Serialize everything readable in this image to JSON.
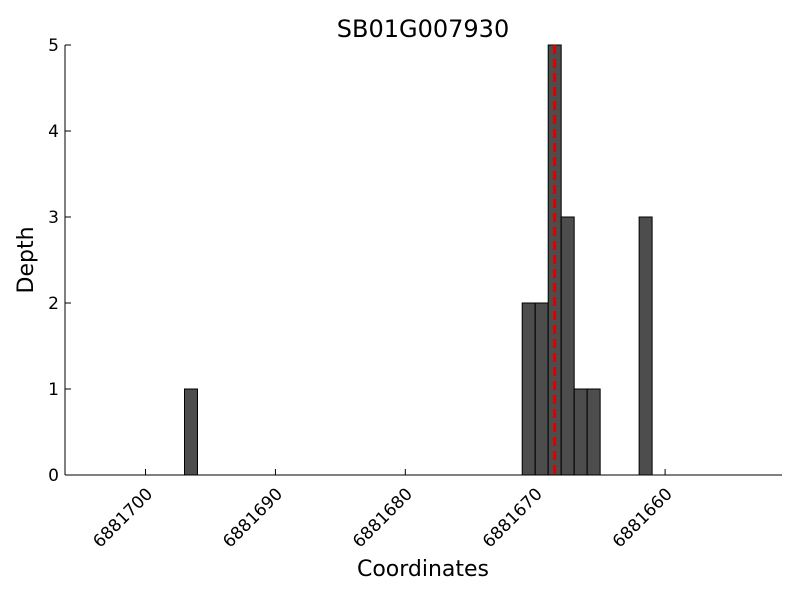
{
  "chart_data": {
    "type": "bar",
    "title": "SB01G007930",
    "xlabel": "Coordinates",
    "ylabel": "Depth",
    "x": [
      6881696.5,
      6881670.5,
      6881669.5,
      6881668.5,
      6881667.5,
      6881666.5,
      6881665.5,
      6881661.5
    ],
    "values": [
      1,
      2,
      2,
      5,
      3,
      1,
      1,
      3
    ],
    "bar_width": 1,
    "color": "#4d4d4d",
    "xlim": [
      6881706.2,
      6881651
    ],
    "xticks": [
      6881700,
      6881690,
      6881680,
      6881670,
      6881660
    ],
    "ylim": [
      0,
      5
    ],
    "yticks": [
      0,
      1,
      2,
      3,
      4,
      5
    ],
    "vline": {
      "x": 6881668.5,
      "color": "#dd0000",
      "style": "dashed"
    }
  }
}
